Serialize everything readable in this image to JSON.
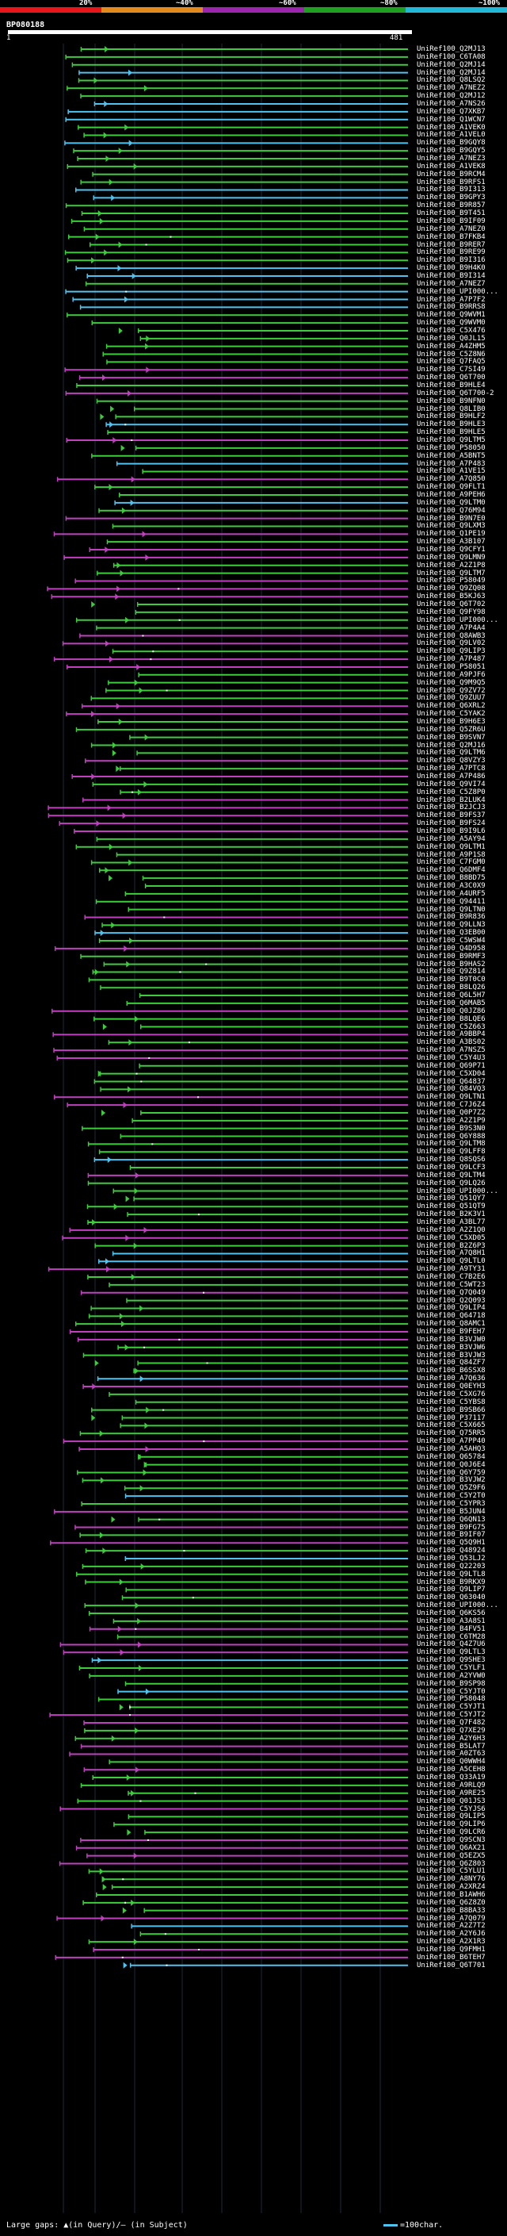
{
  "scale": {
    "ticks": [
      "20%",
      "~40%",
      "~60%",
      "~80%",
      "~100%"
    ],
    "colors": [
      "#e8151b",
      "#e38a1c",
      "#9b25ad",
      "#20a020",
      "#22b8d8"
    ]
  },
  "query": {
    "id": "BP080188",
    "start": "1",
    "end": "481"
  },
  "legend": {
    "text": "Large gaps: ▲(in Query)/— (in Subject)",
    "right": "=100char."
  },
  "colors": {
    "cyan": "#4fc3ef",
    "green": "#3ccc3c",
    "magenta": "#c040c0",
    "white": "#ffffff"
  },
  "hits": [
    "UniRef100_Q2MJ13",
    "UniRef100_C6TA08",
    "UniRef100_Q2MJ14",
    "UniRef100_Q2MJ14",
    "UniRef100_Q8LSQ2",
    "UniRef100_A7NEZ2",
    "UniRef100_Q2MJ12",
    "UniRef100_A7NS26",
    "UniRef100_Q7XKB7",
    "UniRef100_Q1WCN7",
    "UniRef100_A1VEK0",
    "UniRef100_A1VEL0",
    "UniRef100_B9GQY8",
    "UniRef100_B9GQY5",
    "UniRef100_A7NEZ3",
    "UniRef100_A1VEK8",
    "UniRef100_B9RCM4",
    "UniRef100_B9RFS1",
    "UniRef100_B9I313",
    "UniRef100_B9GPY3",
    "UniRef100_B9R857",
    "UniRef100_B9T451",
    "UniRef100_B9IF09",
    "UniRef100_A7NEZ0",
    "UniRef100_B7FKB4",
    "UniRef100_B9RER7",
    "UniRef100_B9RE99",
    "UniRef100_B9I316",
    "UniRef100_B9H4K0",
    "UniRef100_B9I314",
    "UniRef100_A7NEZ7",
    "UniRef100_UPI000...",
    "UniRef100_A7P7F2",
    "UniRef100_B9RRS8",
    "UniRef100_Q9WVM1",
    "UniRef100_Q9WVM0",
    "UniRef100_C5X476",
    "UniRef100_Q0JL15",
    "UniRef100_A4ZHM5",
    "UniRef100_C5Z8N6",
    "UniRef100_Q7FAQ5",
    "UniRef100_C7SI49",
    "UniRef100_Q6T700",
    "UniRef100_B9HLE4",
    "UniRef100_Q6T700-2",
    "UniRef100_B9NFN0",
    "UniRef100_Q8LIB0",
    "UniRef100_B9HLF2",
    "UniRef100_B9HLE3",
    "UniRef100_B9HLE5",
    "UniRef100_Q9LTM5",
    "UniRef100_P58050",
    "UniRef100_A5BNT5",
    "UniRef100_A7P483",
    "UniRef100_A1VE15",
    "UniRef100_A7Q850",
    "UniRef100_Q9FLT1",
    "UniRef100_A9PEH6",
    "UniRef100_Q9LTM0",
    "UniRef100_Q76M94",
    "UniRef100_B9N7E0",
    "UniRef100_Q9LXM3",
    "UniRef100_Q1PE19",
    "UniRef100_A3B107",
    "UniRef100_Q9CFY1",
    "UniRef100_Q9LMN9",
    "UniRef100_A2Z1P8",
    "UniRef100_Q9LTM7",
    "UniRef100_P58049",
    "UniRef100_Q9ZQ08",
    "UniRef100_B5KJ63",
    "UniRef100_Q6T702",
    "UniRef100_Q9FY98",
    "UniRef100_UPI000...",
    "UniRef100_A7P4A4",
    "UniRef100_Q8AWB3",
    "UniRef100_Q9LV02",
    "UniRef100_Q9LIP3",
    "UniRef100_A7P487",
    "UniRef100_P58051",
    "UniRef100_A9PJF6",
    "UniRef100_Q9M9Q5",
    "UniRef100_Q9ZV72",
    "UniRef100_Q9ZUU7",
    "UniRef100_Q6XRL2",
    "UniRef100_C5YAK2",
    "UniRef100_B9H6E3",
    "UniRef100_Q5ZR6U",
    "UniRef100_B9SVN7",
    "UniRef100_Q2MJ16",
    "UniRef100_Q9LTM6",
    "UniRef100_Q8VZY3",
    "UniRef100_A7PTC8",
    "UniRef100_A7P486",
    "UniRef100_Q9VI74",
    "UniRef100_C5Z8P0",
    "UniRef100_B2LUK4",
    "UniRef100_B2JCJ3",
    "UniRef100_B9FS37",
    "UniRef100_B9FS24",
    "UniRef100_B9I9L6",
    "UniRef100_A5AY94",
    "UniRef100_Q9LTM1",
    "UniRef100_A9P1S8",
    "UniRef100_C7FGM0",
    "UniRef100_Q6DMF4",
    "UniRef100_B8BD75",
    "UniRef100_A3C0X9",
    "UniRef100_A4URF5",
    "UniRef100_Q94411",
    "UniRef100_Q9LTN0",
    "UniRef100_B9R836",
    "UniRef100_Q9LLN3",
    "UniRef100_Q3EB00",
    "UniRef100_C5WSW4",
    "UniRef100_Q4D958",
    "UniRef100_B9RMF3",
    "UniRef100_B9HAS2",
    "UniRef100_Q9Z814",
    "UniRef100_B9T0C0",
    "UniRef100_B8LQ26",
    "UniRef100_Q6L5H7",
    "UniRef100_Q6MAB5",
    "UniRef100_Q0JZ86",
    "UniRef100_B8LQE6",
    "UniRef100_C5Z663",
    "UniRef100_A9BBP4",
    "UniRef100_A3BS02",
    "UniRef100_A7NSZ5",
    "UniRef100_C5Y4U3",
    "UniRef100_Q69P71",
    "UniRef100_C5XD04",
    "UniRef100_Q64837",
    "UniRef100_Q84VQ3",
    "UniRef100_Q9LTN1",
    "UniRef100_C7J6Z4",
    "UniRef100_Q0P7Z2",
    "UniRef100_A2Z1P9",
    "UniRef100_B9S3N0",
    "UniRef100_Q6Y888",
    "UniRef100_Q9LTM8",
    "UniRef100_Q9LFF8",
    "UniRef100_Q8SQS6",
    "UniRef100_Q9LCF3",
    "UniRef100_Q9LTM4",
    "UniRef100_Q9LQ26",
    "UniRef100_UPI000...",
    "UniRef100_Q51QY7",
    "UniRef100_Q51QT9",
    "UniRef100_B2K3V1",
    "UniRef100_A3BL77",
    "UniRef100_A2Z1Q0",
    "UniRef100_C5XD05",
    "UniRef100_B2Z6P3",
    "UniRef100_A7Q8H1",
    "UniRef100_Q9LTL0",
    "UniRef100_A9TY31",
    "UniRef100_C7B2E6",
    "UniRef100_C5WT23",
    "UniRef100_Q7Q049",
    "UniRef100_Q2Q093",
    "UniRef100_Q9LIP4",
    "UniRef100_Q64718",
    "UniRef100_Q8AMC1",
    "UniRef100_B9FEH7",
    "UniRef100_B3VJW0",
    "UniRef100_B3VJW6",
    "UniRef100_B3VJW3",
    "UniRef100_Q84ZF7",
    "UniRef100_B6SSX8",
    "UniRef100_A7Q636",
    "UniRef100_Q0EYH3",
    "UniRef100_C5XG76",
    "UniRef100_C5YBS8",
    "UniRef100_B9SB66",
    "UniRef100_P37117",
    "UniRef100_C5X665",
    "UniRef100_Q75RR5",
    "UniRef100_A7PP40",
    "UniRef100_A5AHQ3",
    "UniRef100_Q65784",
    "UniRef100_Q0J6E4",
    "UniRef100_Q6Y759",
    "UniRef100_B3VJW2",
    "UniRef100_Q5Z9F6",
    "UniRef100_C5Y2T0",
    "UniRef100_C5YPR3",
    "UniRef100_B5JUN4",
    "UniRef100_Q6QN13",
    "UniRef100_B9FG75",
    "UniRef100_B9IF07",
    "UniRef100_Q5Q9H1",
    "UniRef100_Q48924",
    "UniRef100_Q53LJ2",
    "UniRef100_Q22203",
    "UniRef100_Q9LTL8",
    "UniRef100_B9RKX9",
    "UniRef100_Q9LIP7",
    "UniRef100_Q63040",
    "UniRef100_UPI000...",
    "UniRef100_Q6KS56",
    "UniRef100_A3A8S1",
    "UniRef100_B4FV51",
    "UniRef100_C6TM28",
    "UniRef100_Q4Z7U6",
    "UniRef100_Q9LTL3",
    "UniRef100_Q9SHE3",
    "UniRef100_C5YLF1",
    "UniRef100_A2YVW0",
    "UniRef100_B9SP98",
    "UniRef100_C5YJT0",
    "UniRef100_P58048",
    "UniRef100_C5YJT1",
    "UniRef100_C5YJT2",
    "UniRef100_Q7F482",
    "UniRef100_Q7XE29",
    "UniRef100_A2Y6H3",
    "UniRef100_B5LAT7",
    "UniRef100_A0ZT63",
    "UniRef100_Q0WWH4",
    "UniRef100_A5CEH8",
    "UniRef100_Q33A19",
    "UniRef100_A9RLQ9",
    "UniRef100_A9RE25",
    "UniRef100_Q01JS3",
    "UniRef100_C5YJS6",
    "UniRef100_Q9LIP5",
    "UniRef100_Q9LIP6",
    "UniRef100_Q9LCR6",
    "UniRef100_Q9SCN3",
    "UniRef100_Q6AX21",
    "UniRef100_Q5EZX5",
    "UniRef100_Q6Z803",
    "UniRef100_C5YLU1",
    "UniRef100_A8NY76",
    "UniRef100_A2XRZ4",
    "UniRef100_B1AWH6",
    "UniRef100_Q6Z8Z0",
    "UniRef100_B8BA33",
    "UniRef100_A7Q079",
    "UniRef100_A2Z7T2",
    "UniRef100_A2Y6J6",
    "UniRef100_A2X1R3",
    "UniRef100_Q9FMH1",
    "UniRef100_B6TEH7",
    "UniRef100_Q6T701"
  ]
}
